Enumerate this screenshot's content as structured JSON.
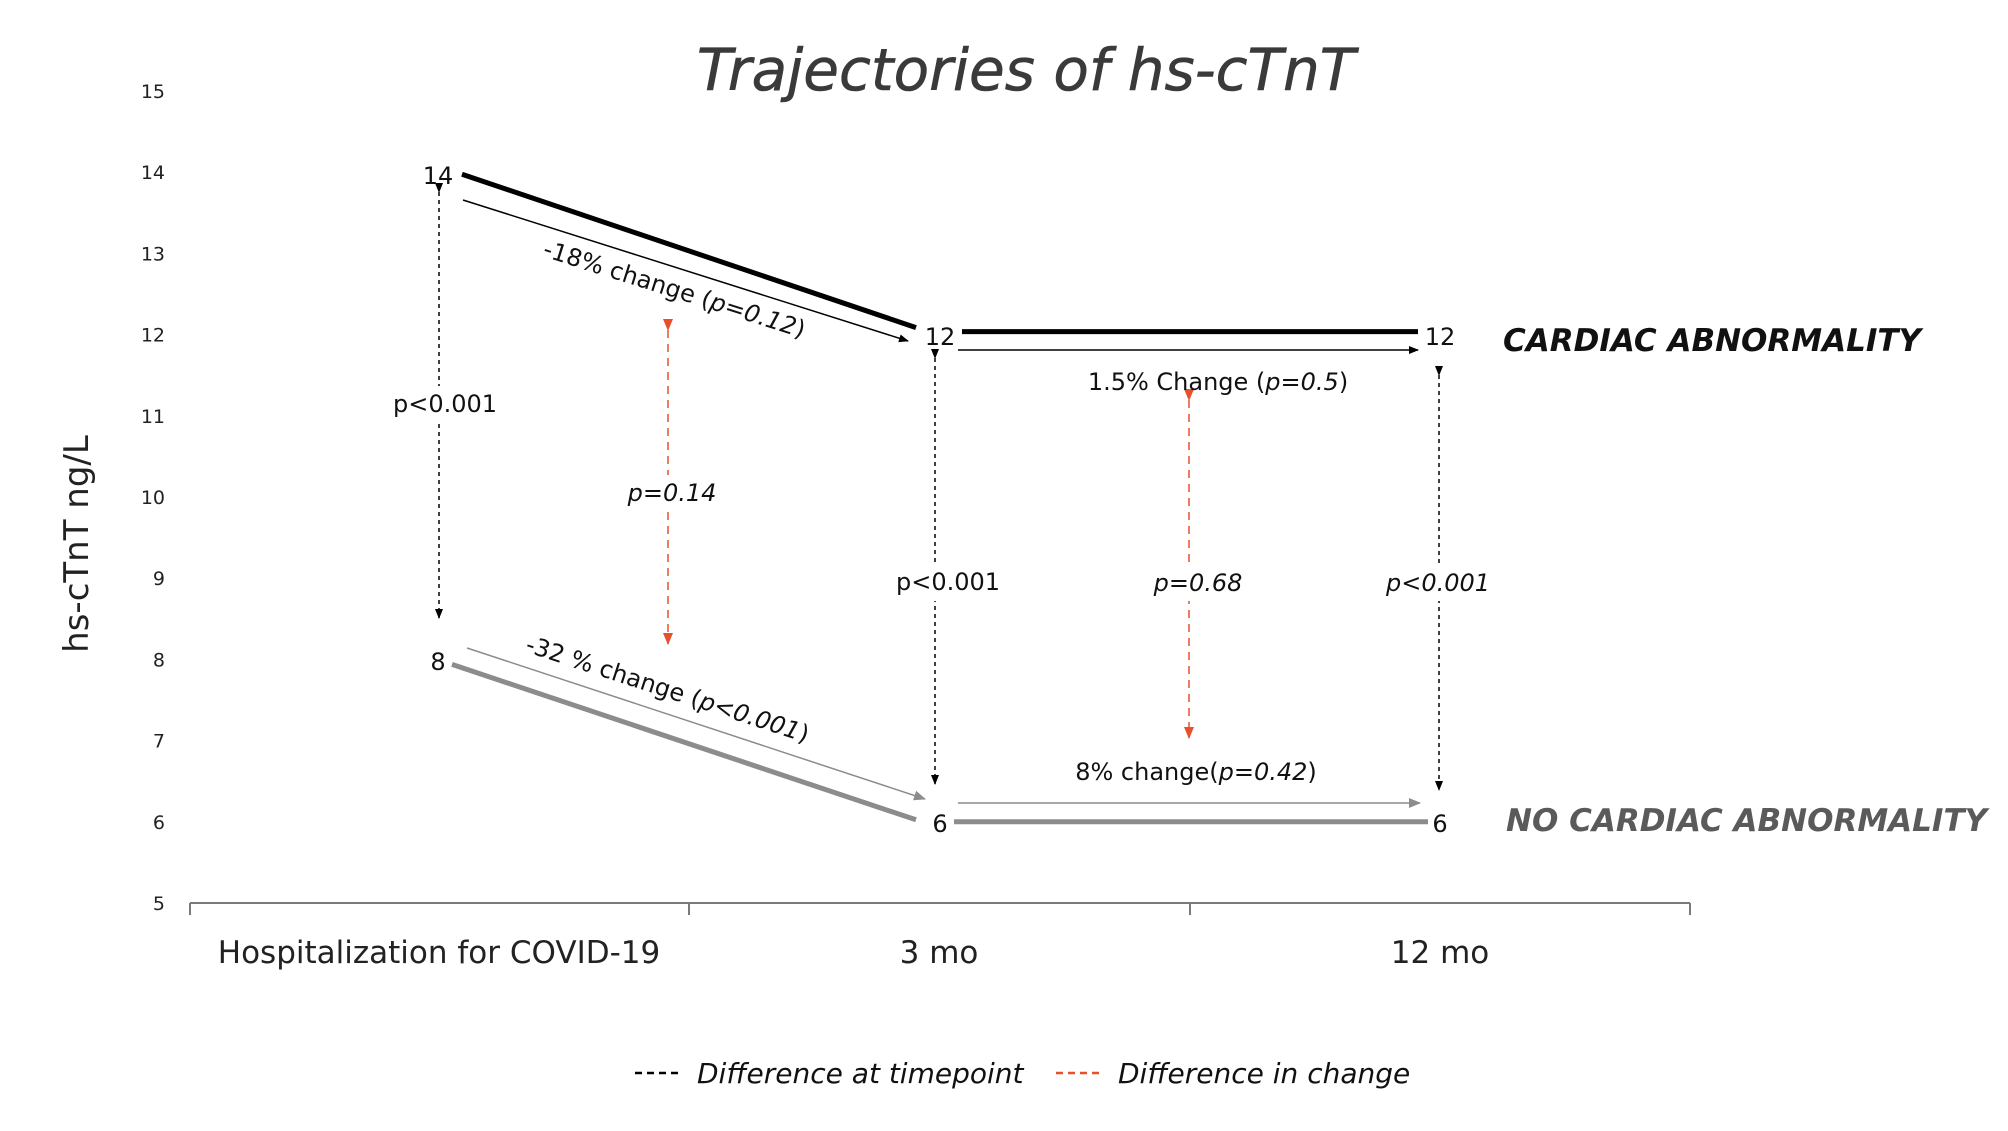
{
  "chart_data": {
    "type": "line",
    "title": "Trajectories of hs-cTnT",
    "xlabel": "",
    "ylabel": "hs-cTnT ng/L",
    "ylim": [
      5,
      15
    ],
    "yticks": [
      "5",
      "6",
      "7",
      "8",
      "9",
      "10",
      "11",
      "12",
      "13",
      "14",
      "15"
    ],
    "categories": [
      "Hospitalization for COVID-19",
      "3 mo",
      "12 mo"
    ],
    "grid": false,
    "series": [
      {
        "name": "CARDIAC ABNORMALITY",
        "values": [
          14,
          12,
          12
        ],
        "point_labels": [
          "14",
          "12",
          "12"
        ],
        "color": "#000000"
      },
      {
        "name": "NO CARDIAC ABNORMALITY",
        "values": [
          8,
          6,
          6
        ],
        "point_labels": [
          "8",
          "6",
          "6"
        ],
        "color": "#8c8c8c"
      }
    ],
    "annotations": {
      "upper_change_1": {
        "pre": "-18% change (",
        "p": "p=0.12",
        "post": ")"
      },
      "upper_change_2": {
        "pre": "1.5% Change (",
        "p": "p=0.5",
        "post": ")"
      },
      "lower_change_1": {
        "pre": "-32 % change (",
        "p": "p<0.001",
        "post": ")"
      },
      "lower_change_2": {
        "pre": "8% change(",
        "p": "p=0.42",
        "post": ")"
      },
      "diff_timepoint": [
        "p<0.001",
        "p<0.001",
        "p<0.001"
      ],
      "diff_change": [
        "p=0.14",
        "p=0.68"
      ]
    },
    "legend": {
      "position": "bottom",
      "items": [
        {
          "label": "Difference at timepoint",
          "color": "#000000",
          "dash": true
        },
        {
          "label": "Difference in change",
          "color": "#e8502a",
          "dash": true
        }
      ]
    },
    "colors": {
      "upper": "#000000",
      "lower": "#8c8c8c",
      "diff_change_arrow": "#e8502a",
      "lower_label": "#5a5a5a"
    }
  }
}
